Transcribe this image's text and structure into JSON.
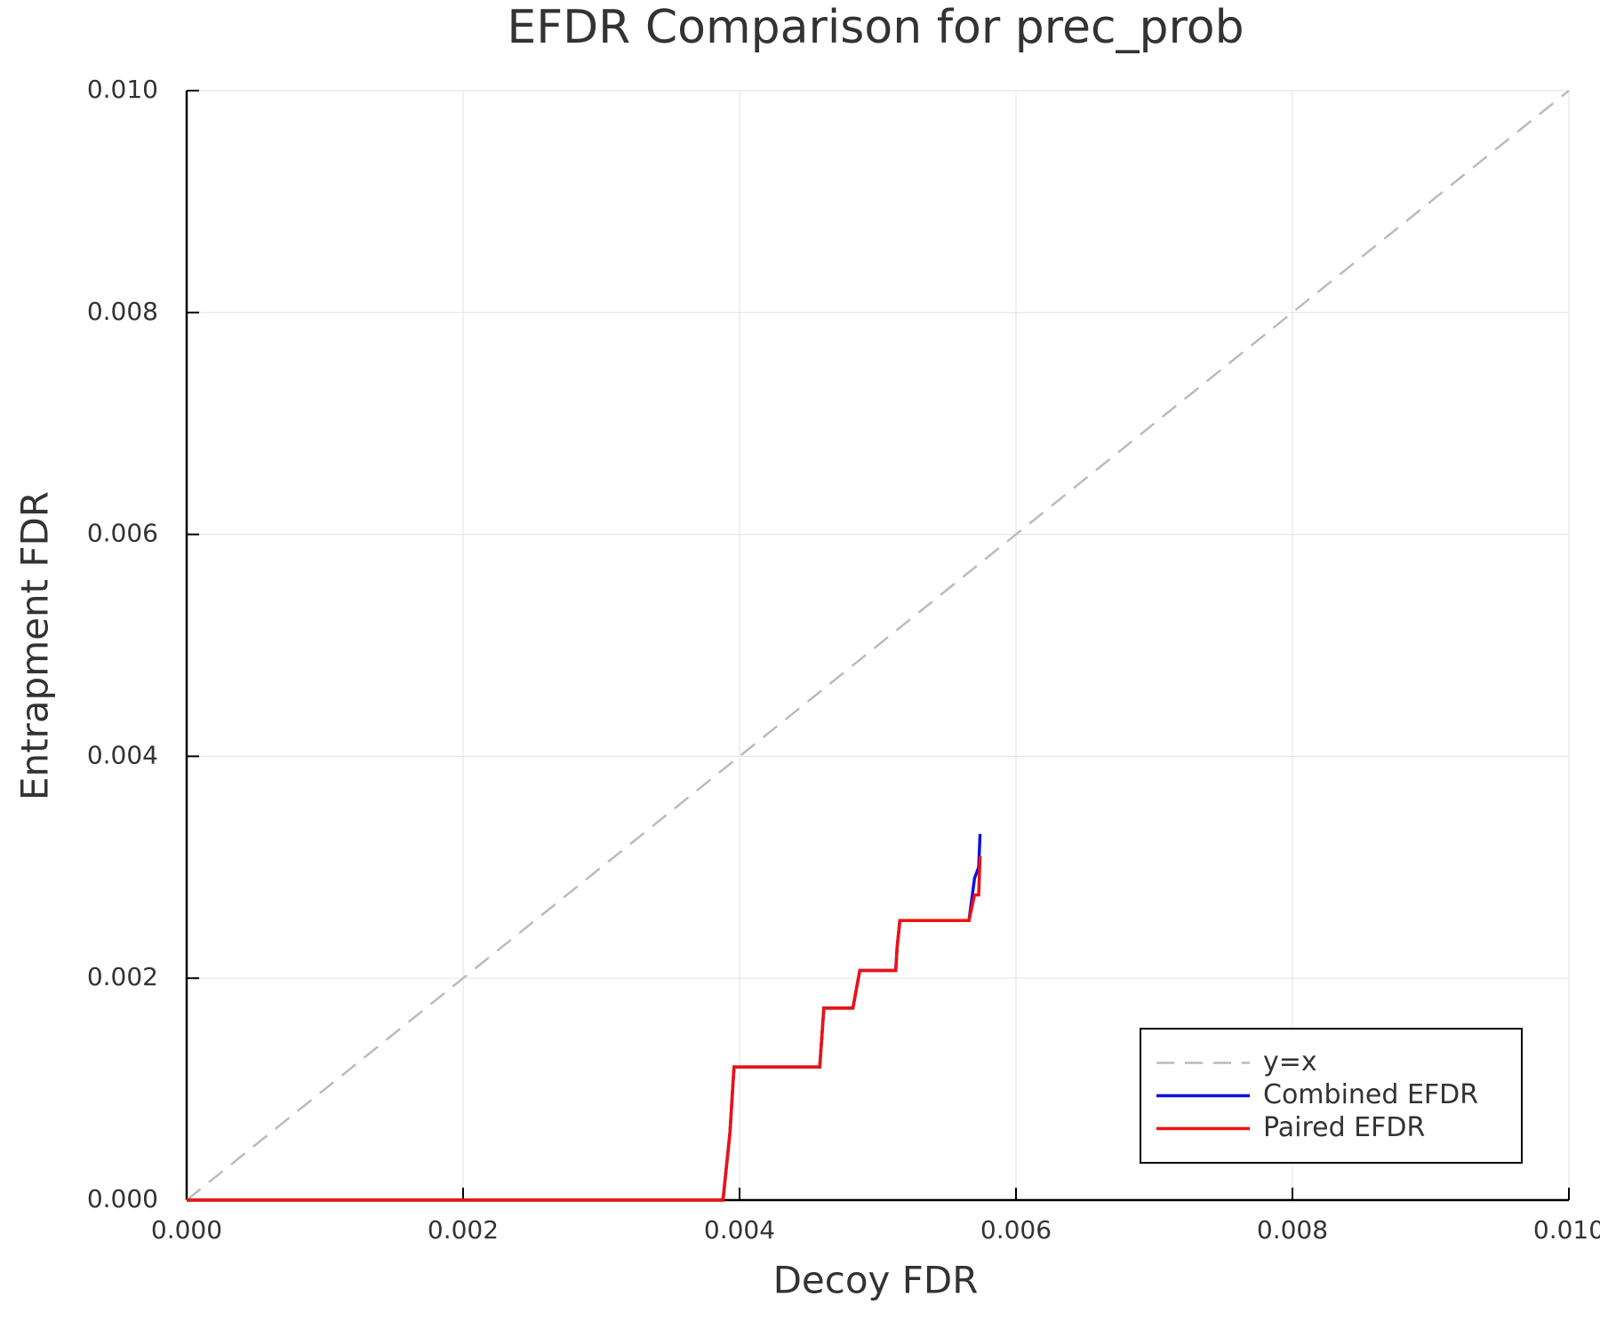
{
  "chart_data": {
    "type": "line",
    "title": "EFDR Comparison for prec_prob",
    "xlabel": "Decoy FDR",
    "ylabel": "Entrapment FDR",
    "xlim": [
      0,
      0.01
    ],
    "ylim": [
      0,
      0.01
    ],
    "xticks": [
      {
        "value": 0,
        "label": "0.000"
      },
      {
        "value": 0.002,
        "label": "0.002"
      },
      {
        "value": 0.004,
        "label": "0.004"
      },
      {
        "value": 0.006,
        "label": "0.006"
      },
      {
        "value": 0.008,
        "label": "0.008"
      },
      {
        "value": 0.01,
        "label": "0.010"
      }
    ],
    "yticks": [
      {
        "value": 0,
        "label": "0.000"
      },
      {
        "value": 0.002,
        "label": "0.002"
      },
      {
        "value": 0.004,
        "label": "0.004"
      },
      {
        "value": 0.006,
        "label": "0.006"
      },
      {
        "value": 0.008,
        "label": "0.008"
      },
      {
        "value": 0.01,
        "label": "0.010"
      }
    ],
    "grid": true,
    "legend": "bottom-right",
    "series": [
      {
        "name": "y=x",
        "color": "#bbbbbb",
        "dashed": true,
        "x": [
          0,
          0.01
        ],
        "values": [
          0,
          0.01
        ]
      },
      {
        "name": "Combined EFDR",
        "color": "#1010e0",
        "dashed": false,
        "x": [
          0,
          0.00388,
          0.00393,
          0.00396,
          0.00458,
          0.00461,
          0.00482,
          0.00487,
          0.00513,
          0.00514,
          0.00516,
          0.00566,
          0.0057,
          0.00573,
          0.00574
        ],
        "values": [
          0,
          0,
          0.0006,
          0.0012,
          0.0012,
          0.00173,
          0.00173,
          0.00207,
          0.00207,
          0.00228,
          0.00252,
          0.00252,
          0.0029,
          0.003,
          0.0033
        ]
      },
      {
        "name": "Paired EFDR",
        "color": "#f01010",
        "dashed": false,
        "x": [
          0,
          0.00388,
          0.00393,
          0.00396,
          0.00458,
          0.00461,
          0.00482,
          0.00487,
          0.00513,
          0.00514,
          0.00516,
          0.00566,
          0.0057,
          0.00573,
          0.00574
        ],
        "values": [
          0,
          0,
          0.0006,
          0.0012,
          0.0012,
          0.00173,
          0.00173,
          0.00207,
          0.00207,
          0.00228,
          0.00252,
          0.00252,
          0.00275,
          0.00275,
          0.0031
        ]
      }
    ]
  }
}
